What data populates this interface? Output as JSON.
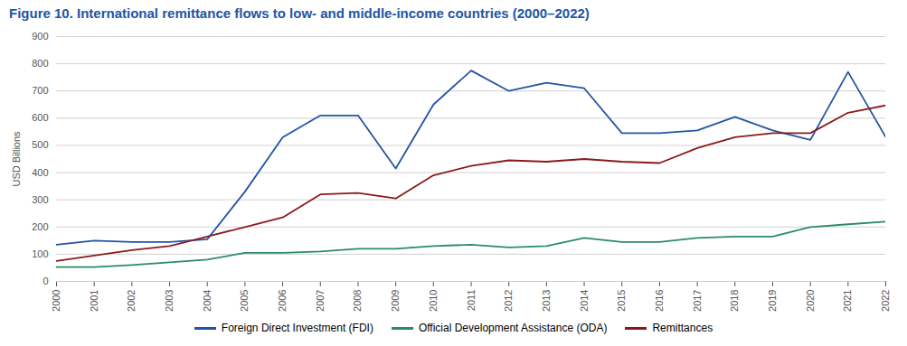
{
  "chart_data": {
    "type": "line",
    "title": "Figure 10. International remittance flows to low- and middle-income countries (2000–2022)",
    "ylabel": "USD Billions",
    "x": [
      2000,
      2001,
      2002,
      2003,
      2004,
      2005,
      2006,
      2007,
      2008,
      2009,
      2010,
      2011,
      2012,
      2013,
      2014,
      2015,
      2016,
      2017,
      2018,
      2019,
      2020,
      2021,
      2022
    ],
    "series": [
      {
        "name": "Foreign Direct Investment (FDI)",
        "color": "#2255a4",
        "values": [
          135,
          150,
          145,
          145,
          155,
          330,
          530,
          610,
          610,
          415,
          650,
          775,
          700,
          730,
          710,
          545,
          545,
          555,
          605,
          555,
          520,
          770,
          530
        ]
      },
      {
        "name": "Official Development Assistance (ODA)",
        "color": "#2a8a6e",
        "values": [
          53,
          53,
          60,
          70,
          80,
          105,
          105,
          110,
          120,
          120,
          130,
          135,
          125,
          130,
          160,
          145,
          145,
          160,
          165,
          165,
          200,
          210,
          220
        ]
      },
      {
        "name": "Remittances",
        "color": "#8b1a1a",
        "values": [
          75,
          95,
          115,
          130,
          165,
          200,
          235,
          320,
          325,
          305,
          390,
          425,
          445,
          440,
          450,
          440,
          435,
          490,
          530,
          545,
          545,
          620,
          647
        ]
      }
    ],
    "xlim": [
      2000,
      2022
    ],
    "xticks": [
      2000,
      2001,
      2002,
      2003,
      2004,
      2005,
      2006,
      2007,
      2008,
      2009,
      2010,
      2011,
      2012,
      2013,
      2014,
      2015,
      2016,
      2017,
      2018,
      2019,
      2020,
      2021,
      2022
    ],
    "ylim": [
      0,
      900
    ],
    "yticks": [
      0,
      100,
      200,
      300,
      400,
      500,
      600,
      700,
      800,
      900
    ],
    "grid": "y",
    "legend": "bottom"
  }
}
